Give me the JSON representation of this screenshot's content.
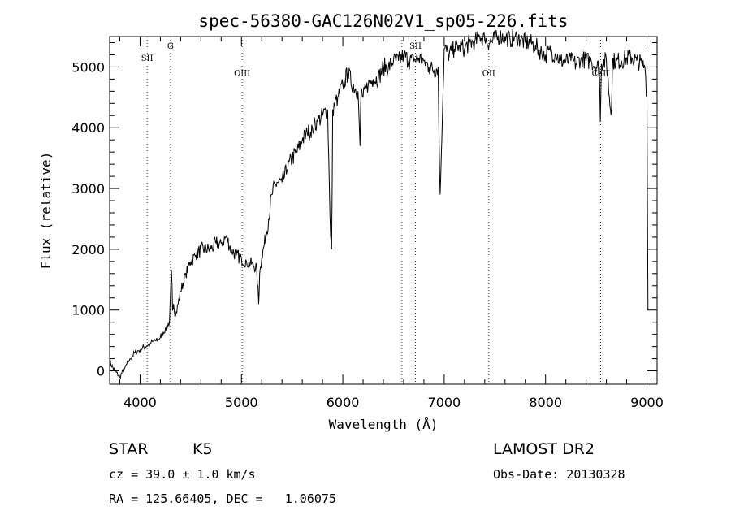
{
  "chart_data": {
    "type": "line",
    "title": "spec-56380-GAC126N02V1_sp05-226.fits",
    "xlabel": "Wavelength (Å)",
    "ylabel": "Flux (relative)",
    "xlim": [
      3700,
      9100
    ],
    "ylim": [
      -220,
      5500
    ],
    "x_ticks": [
      4000,
      5000,
      6000,
      7000,
      8000,
      9000
    ],
    "y_ticks": [
      0,
      1000,
      2000,
      3000,
      4000,
      5000
    ],
    "grid": false,
    "series": [
      {
        "x": [
          3700,
          3750,
          3800,
          3850,
          3900,
          3950,
          4000,
          4050,
          4100,
          4150,
          4200,
          4250,
          4290,
          4310,
          4320,
          4330,
          4350,
          4400,
          4450,
          4500,
          4550,
          4600,
          4650,
          4700,
          4750,
          4800,
          4850,
          4900,
          4950,
          5000,
          5050,
          5100,
          5150,
          5170,
          5180,
          5200,
          5250,
          5300,
          5350,
          5400,
          5450,
          5500,
          5550,
          5600,
          5650,
          5700,
          5750,
          5800,
          5850,
          5880,
          5890,
          5900,
          5950,
          6000,
          6050,
          6100,
          6150,
          6170,
          6180,
          6200,
          6250,
          6300,
          6350,
          6400,
          6450,
          6500,
          6550,
          6600,
          6650,
          6700,
          6750,
          6800,
          6850,
          6900,
          6940,
          6950,
          6960,
          7000,
          7050,
          7100,
          7150,
          7200,
          7250,
          7300,
          7350,
          7400,
          7450,
          7500,
          7550,
          7600,
          7650,
          7700,
          7750,
          7800,
          7850,
          7900,
          7950,
          8000,
          8050,
          8100,
          8150,
          8200,
          8250,
          8300,
          8350,
          8400,
          8450,
          8500,
          8530,
          8540,
          8550,
          8600,
          8640,
          8650,
          8660,
          8700,
          8750,
          8800,
          8850,
          8900,
          8950,
          8980,
          9000,
          9010
        ],
        "y": [
          150,
          0,
          -100,
          50,
          200,
          300,
          350,
          400,
          450,
          500,
          550,
          700,
          800,
          1650,
          1000,
          1100,
          900,
          1300,
          1600,
          1800,
          1900,
          2000,
          2000,
          2000,
          2100,
          2100,
          2200,
          2000,
          1900,
          1850,
          1800,
          1750,
          1700,
          1100,
          1600,
          1850,
          2300,
          2900,
          3100,
          3100,
          3300,
          3500,
          3600,
          3800,
          3900,
          4000,
          4100,
          4200,
          4300,
          2200,
          2000,
          4300,
          4500,
          4700,
          4900,
          4700,
          4600,
          3700,
          4600,
          4500,
          4700,
          4800,
          4800,
          5000,
          5000,
          5100,
          5100,
          5200,
          5100,
          5100,
          5150,
          5100,
          5000,
          4950,
          5000,
          3800,
          2900,
          5300,
          5200,
          5300,
          5350,
          5300,
          5400,
          5400,
          5500,
          5450,
          5400,
          5450,
          5500,
          5500,
          5450,
          5500,
          5450,
          5400,
          5400,
          5350,
          5250,
          5200,
          5250,
          5200,
          5100,
          5100,
          5100,
          5050,
          5150,
          5100,
          5100,
          5000,
          5000,
          4100,
          5050,
          5100,
          4300,
          4300,
          5100,
          5100,
          5100,
          5150,
          5150,
          5100,
          5050,
          5000,
          4500,
          1000
        ]
      }
    ],
    "annotations": [
      {
        "label": "SII",
        "x": 4070,
        "y": 5100
      },
      {
        "label": "G",
        "x": 4300,
        "y": 5300
      },
      {
        "label": "OIII",
        "x": 5007,
        "y": 4850
      },
      {
        "label": "SII",
        "x": 6717,
        "y": 5300
      },
      {
        "label": "OII",
        "x": 7440,
        "y": 4850
      },
      {
        "label": "CaII",
        "x": 8542,
        "y": 4850
      }
    ],
    "line_markers": [
      4070,
      4300,
      5007,
      6583,
      6717,
      7440,
      8542
    ]
  },
  "info": {
    "class_type": "STAR",
    "subclass": "K5",
    "survey": "LAMOST DR2",
    "cz": "cz = 39.0 ± 1.0 km/s",
    "obs_date": "Obs-Date: 20130328",
    "radec": "RA = 125.66405, DEC =   1.06075"
  }
}
